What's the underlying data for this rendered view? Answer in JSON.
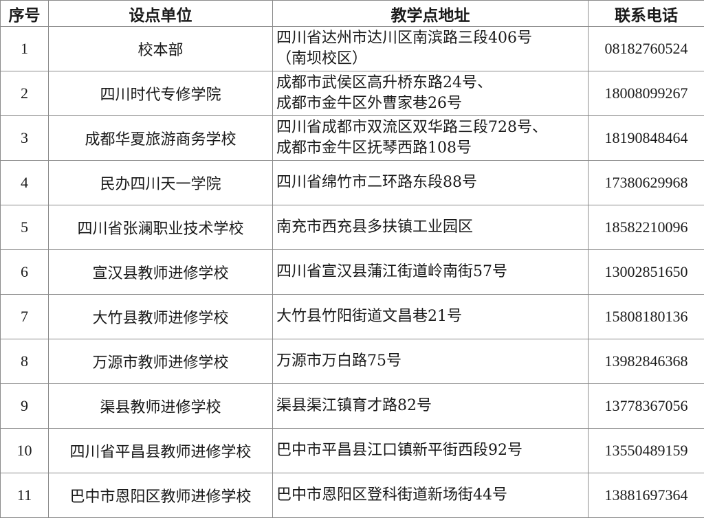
{
  "headers": [
    "序号",
    "设点单位",
    "教学点地址",
    "联系电话"
  ],
  "rows": [
    {
      "no": "1",
      "unit": "校本部",
      "addr1": "四川省达州市达川区南滨路三段406号",
      "addr2": "（南坝校区）",
      "phone": "08182760524"
    },
    {
      "no": "2",
      "unit": "四川时代专修学院",
      "addr1": "成都市武侯区高升桥东路24号、",
      "addr2": "成都市金牛区外曹家巷26号",
      "phone": "18008099267"
    },
    {
      "no": "3",
      "unit": "成都华夏旅游商务学校",
      "addr1": "四川省成都市双流区双华路三段728号、",
      "addr2": "成都市金牛区抚琴西路108号",
      "phone": "18190848464"
    },
    {
      "no": "4",
      "unit": "民办四川天一学院",
      "addr1": "四川省绵竹市二环路东段88号",
      "phone": "17380629968"
    },
    {
      "no": "5",
      "unit": "四川省张澜职业技术学校",
      "addr1": "南充市西充县多扶镇工业园区",
      "phone": "18582210096"
    },
    {
      "no": "6",
      "unit": "宣汉县教师进修学校",
      "addr1": "四川省宣汉县蒲江街道岭南街57号",
      "phone": "13002851650"
    },
    {
      "no": "7",
      "unit": "大竹县教师进修学校",
      "addr1": "大竹县竹阳街道文昌巷21号",
      "phone": "15808180136"
    },
    {
      "no": "8",
      "unit": "万源市教师进修学校",
      "addr1": "万源市万白路75号",
      "phone": "13982846368"
    },
    {
      "no": "9",
      "unit": "渠县教师进修学校",
      "addr1": "渠县渠江镇育才路82号",
      "phone": "13778367056"
    },
    {
      "no": "10",
      "unit": "四川省平昌县教师进修学校",
      "addr1": "巴中市平昌县江口镇新平街西段92号",
      "phone": "13550489159"
    },
    {
      "no": "11",
      "unit": "巴中市恩阳区教师进修学校",
      "addr1": "巴中市恩阳区登科街道新场街44号",
      "phone": "13881697364"
    }
  ]
}
